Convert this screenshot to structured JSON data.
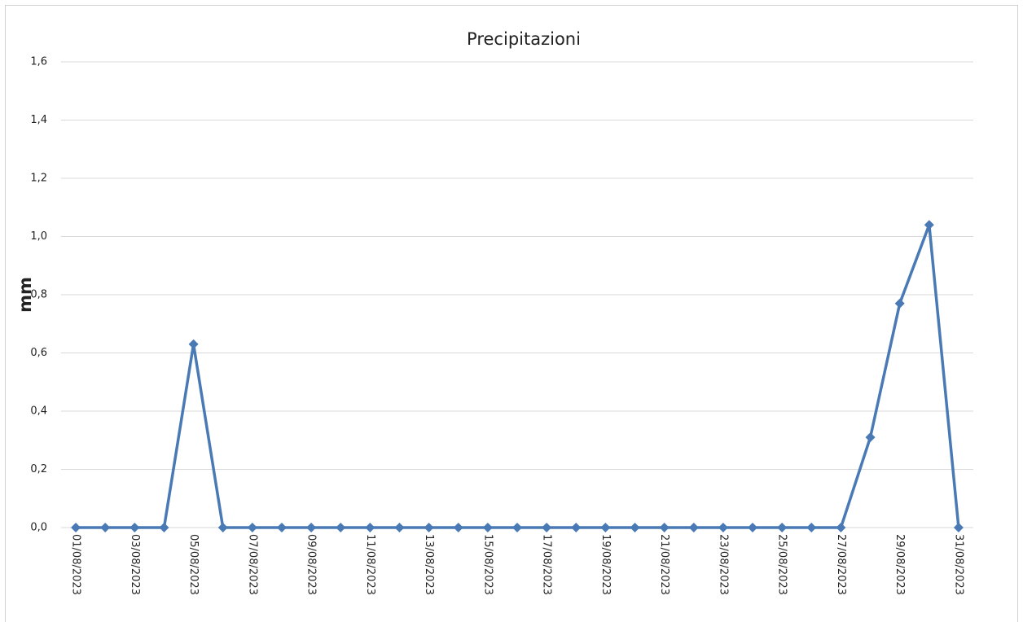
{
  "chart_data": {
    "type": "line",
    "title": "Precipitazioni",
    "y_label": "mm",
    "categories": [
      "01/08/2023",
      null,
      "03/08/2023",
      null,
      "05/08/2023",
      null,
      "07/08/2023",
      null,
      "09/08/2023",
      null,
      "11/08/2023",
      null,
      "13/08/2023",
      null,
      "15/08/2023",
      null,
      "17/08/2023",
      null,
      "19/08/2023",
      null,
      "21/08/2023",
      null,
      "23/08/2023",
      null,
      "25/08/2023",
      null,
      "27/08/2023",
      null,
      "29/08/2023",
      null,
      "31/08/2023"
    ],
    "series": [
      {
        "name": "Precipitazioni",
        "color": "#4a7ab5",
        "values": [
          0,
          0,
          0,
          0,
          0.63,
          0,
          0,
          0,
          0,
          0,
          0,
          0,
          0,
          0,
          0,
          0,
          0,
          0,
          0,
          0,
          0,
          0,
          0,
          0,
          0,
          0,
          0,
          0.31,
          0.77,
          1.04,
          0
        ]
      }
    ],
    "ylim": [
      0,
      1.6
    ],
    "yticks": [
      {
        "value": 0,
        "label": "0,0"
      },
      {
        "value": 0.2,
        "label": "0,2"
      },
      {
        "value": 0.4,
        "label": "0,4"
      },
      {
        "value": 0.6,
        "label": "0,6"
      },
      {
        "value": 0.8,
        "label": "0,8"
      },
      {
        "value": 1.0,
        "label": "1,0"
      },
      {
        "value": 1.2,
        "label": "1,2"
      },
      {
        "value": 1.4,
        "label": "1,4"
      },
      {
        "value": 1.6,
        "label": "1,6"
      }
    ],
    "grid": true
  }
}
